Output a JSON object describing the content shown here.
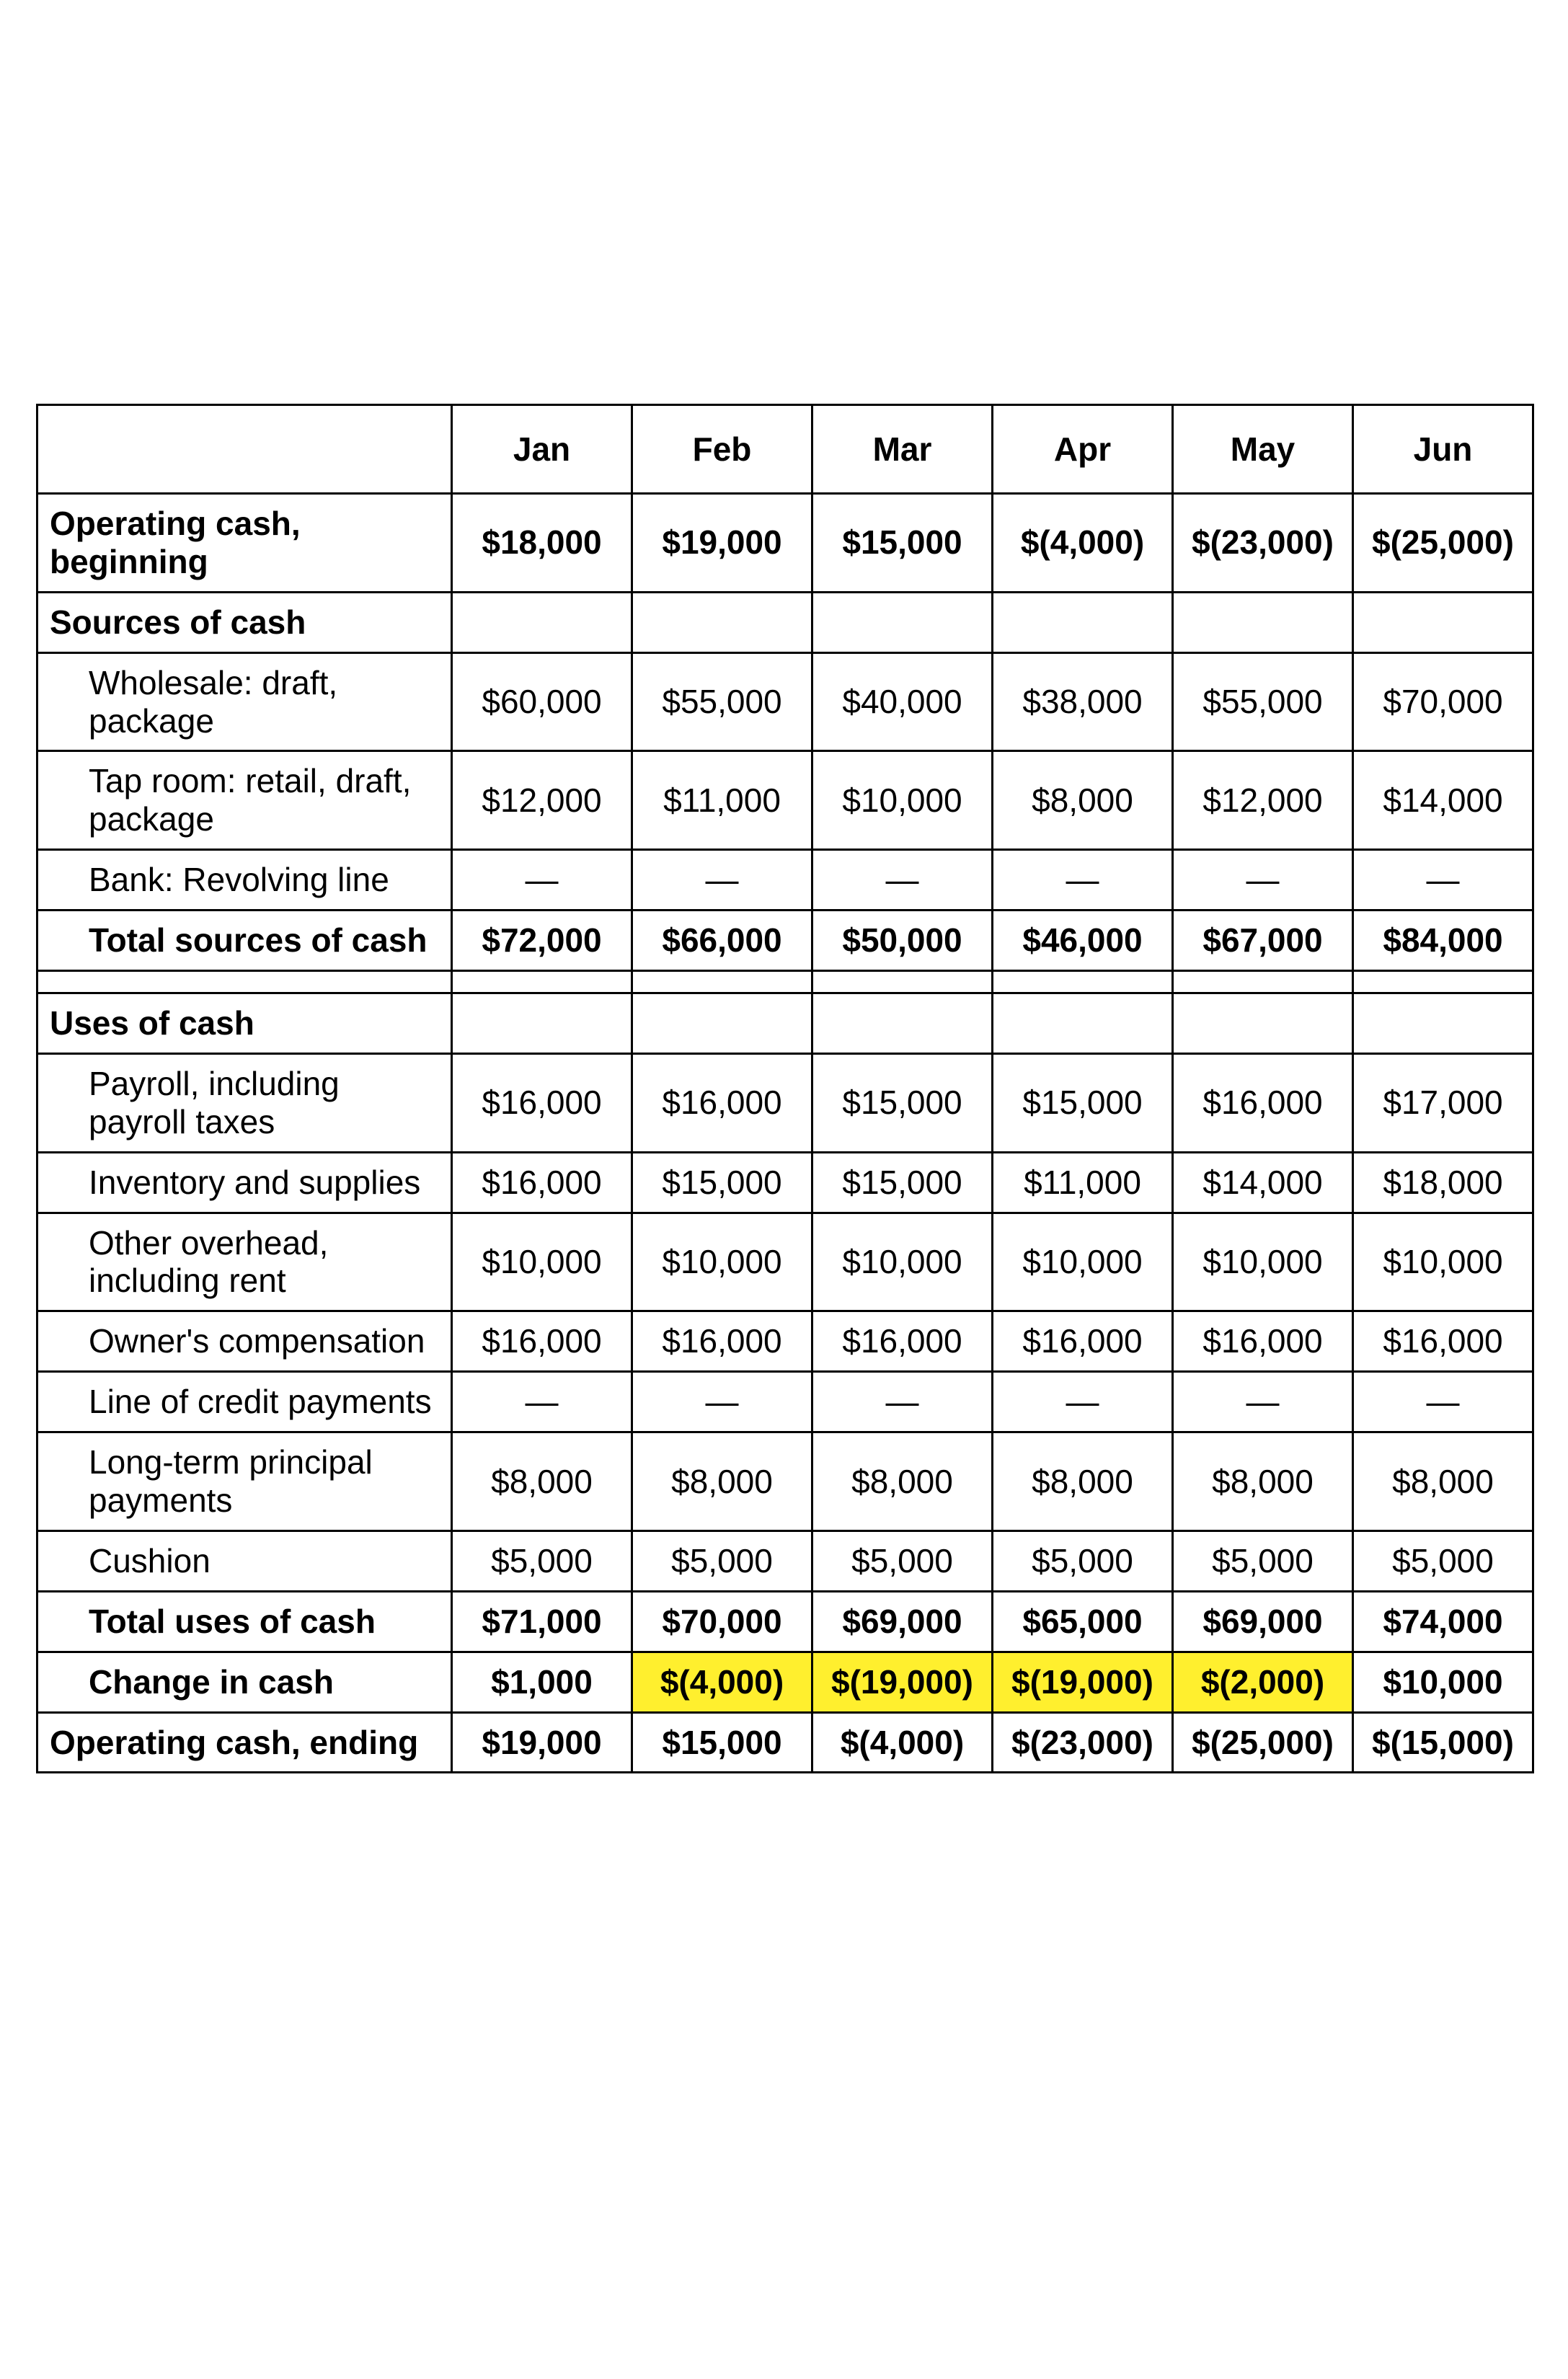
{
  "table": {
    "months": [
      "Jan",
      "Feb",
      "Mar",
      "Apr",
      "May",
      "Jun"
    ],
    "highlight_color": "#ffef2e",
    "border_color": "#000000",
    "font_family": "Arial",
    "header_fontsize": 46,
    "cell_fontsize": 46,
    "rows": [
      {
        "id": "op-cash-begin",
        "label": "Operating cash, beginning",
        "bold": true,
        "indent": 0,
        "values": [
          "$18,000",
          "$19,000",
          "$15,000",
          "$(4,000)",
          "$(23,000)",
          "$(25,000)"
        ]
      },
      {
        "id": "sources-header",
        "label": "Sources of cash",
        "bold": true,
        "indent": 0,
        "values": [
          "",
          "",
          "",
          "",
          "",
          ""
        ]
      },
      {
        "id": "wholesale",
        "label": "Wholesale: draft, package",
        "bold": false,
        "indent": 1,
        "values": [
          "$60,000",
          "$55,000",
          "$40,000",
          "$38,000",
          "$55,000",
          "$70,000"
        ]
      },
      {
        "id": "tap-room",
        "label": "Tap room: retail, draft, package",
        "bold": false,
        "indent": 1,
        "values": [
          "$12,000",
          "$11,000",
          "$10,000",
          "$8,000",
          "$12,000",
          "$14,000"
        ]
      },
      {
        "id": "bank-revolving",
        "label": "Bank: Revolving line",
        "bold": false,
        "indent": 1,
        "values": [
          "—",
          "—",
          "—",
          "—",
          "—",
          "—"
        ]
      },
      {
        "id": "total-sources",
        "label": "Total sources of cash",
        "bold": true,
        "indent": 1,
        "values": [
          "$72,000",
          "$66,000",
          "$50,000",
          "$46,000",
          "$67,000",
          "$84,000"
        ]
      },
      {
        "id": "spacer",
        "spacer": true
      },
      {
        "id": "uses-header",
        "label": "Uses of cash",
        "bold": true,
        "indent": 0,
        "values": [
          "",
          "",
          "",
          "",
          "",
          ""
        ]
      },
      {
        "id": "payroll",
        "label": "Payroll, including payroll taxes",
        "bold": false,
        "indent": 1,
        "values": [
          "$16,000",
          "$16,000",
          "$15,000",
          "$15,000",
          "$16,000",
          "$17,000"
        ]
      },
      {
        "id": "inventory",
        "label": "Inventory and supplies",
        "bold": false,
        "indent": 1,
        "values": [
          "$16,000",
          "$15,000",
          "$15,000",
          "$11,000",
          "$14,000",
          "$18,000"
        ]
      },
      {
        "id": "overhead",
        "label": "Other overhead, including rent",
        "bold": false,
        "indent": 1,
        "values": [
          "$10,000",
          "$10,000",
          "$10,000",
          "$10,000",
          "$10,000",
          "$10,000"
        ]
      },
      {
        "id": "owner-comp",
        "label": "Owner's compensation",
        "bold": false,
        "indent": 1,
        "values": [
          "$16,000",
          "$16,000",
          "$16,000",
          "$16,000",
          "$16,000",
          "$16,000"
        ]
      },
      {
        "id": "loc-payments",
        "label": "Line of credit payments",
        "bold": false,
        "indent": 1,
        "values": [
          "—",
          "—",
          "—",
          "—",
          "—",
          "—"
        ]
      },
      {
        "id": "lt-principal",
        "label": "Long-term principal payments",
        "bold": false,
        "indent": 1,
        "values": [
          "$8,000",
          "$8,000",
          "$8,000",
          "$8,000",
          "$8,000",
          "$8,000"
        ]
      },
      {
        "id": "cushion",
        "label": "Cushion",
        "bold": false,
        "indent": 1,
        "values": [
          "$5,000",
          "$5,000",
          "$5,000",
          "$5,000",
          "$5,000",
          "$5,000"
        ]
      },
      {
        "id": "total-uses",
        "label": "Total uses of cash",
        "bold": true,
        "indent": 1,
        "values": [
          "$71,000",
          "$70,000",
          "$69,000",
          "$65,000",
          "$69,000",
          "$74,000"
        ]
      },
      {
        "id": "change-in-cash",
        "label": "Change in cash",
        "bold": true,
        "indent": 1,
        "values": [
          "$1,000",
          "$(4,000)",
          "$(19,000)",
          "$(19,000)",
          "$(2,000)",
          "$10,000"
        ],
        "highlight": [
          false,
          true,
          true,
          true,
          true,
          false
        ]
      },
      {
        "id": "op-cash-end",
        "label": "Operating cash, ending",
        "bold": true,
        "indent": 0,
        "values": [
          "$19,000",
          "$15,000",
          "$(4,000)",
          "$(23,000)",
          "$(25,000)",
          "$(15,000)"
        ]
      }
    ]
  }
}
